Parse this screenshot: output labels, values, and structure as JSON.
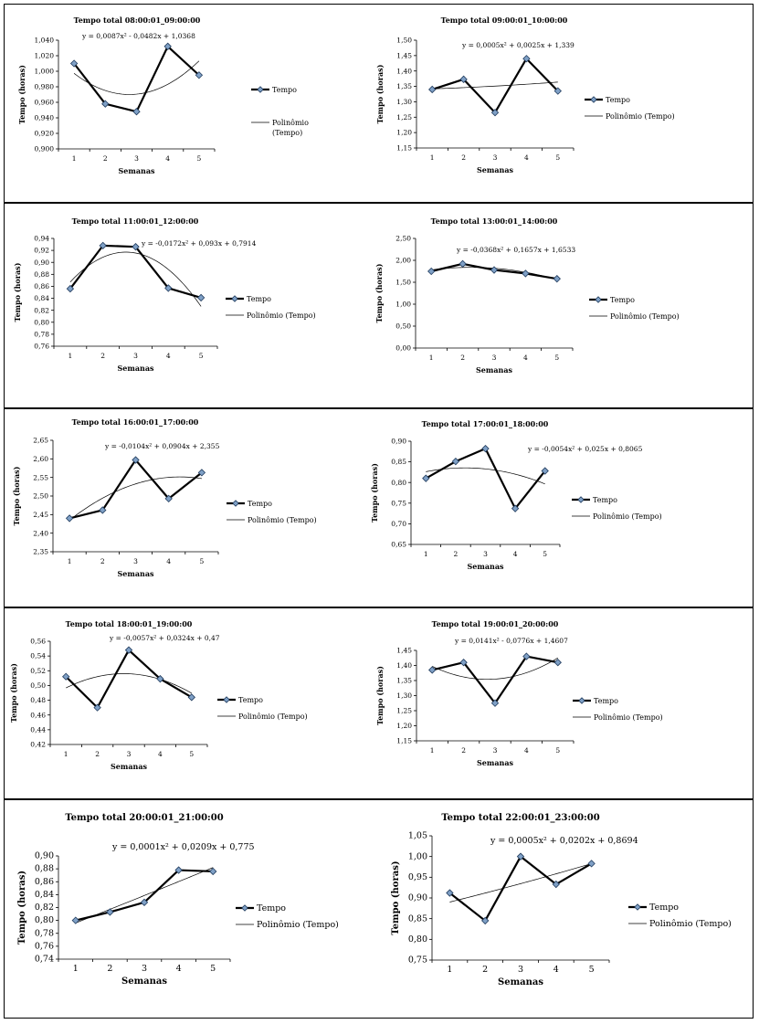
{
  "legend": {
    "series": "Tempo",
    "trend": "Polinômio\n(Tempo)"
  },
  "chart_data": [
    {
      "type": "line",
      "title": "Tempo total 08:00:01_09:00:00",
      "xlabel": "Semanas",
      "ylabel": "Tempo (horas)",
      "x": [
        1,
        2,
        3,
        4,
        5
      ],
      "ylim": [
        0.9,
        1.04
      ],
      "ytick_step": 0.02,
      "ytick_decimals": 3,
      "series": [
        {
          "name": "Tempo",
          "values": [
            1.01,
            0.958,
            0.948,
            1.032,
            0.995
          ]
        },
        {
          "name": "Polinômio (Tempo)",
          "poly": [
            0.0087,
            -0.0482,
            1.0368
          ]
        }
      ],
      "equation": "y = 0,0087x² - 0,0482x + 1,0368",
      "legend_trend_label": "Polinômio\n(Tempo)",
      "legend_position": "right"
    },
    {
      "type": "line",
      "title": "Tempo total 09:00:01_10:00:00",
      "xlabel": "Semanas",
      "ylabel": "Tempo (horas)",
      "x": [
        1,
        2,
        3,
        4,
        5
      ],
      "ylim": [
        1.15,
        1.5
      ],
      "ytick_step": 0.05,
      "ytick_decimals": 2,
      "series": [
        {
          "name": "Tempo",
          "values": [
            1.34,
            1.373,
            1.265,
            1.44,
            1.335
          ]
        },
        {
          "name": "Polinômio (Tempo)",
          "poly": [
            0.0005,
            0.0025,
            1.339
          ]
        }
      ],
      "equation": "y = 0,0005x² + 0,0025x + 1,339",
      "legend_trend_label": "Polinômio (Tempo)",
      "legend_position": "right"
    },
    {
      "type": "line",
      "title": "Tempo total 11:00:01_12:00:00",
      "xlabel": "Semanas",
      "ylabel": "Tempo (horas)",
      "x": [
        1,
        2,
        3,
        4,
        5
      ],
      "ylim": [
        0.76,
        0.94
      ],
      "ytick_step": 0.02,
      "ytick_decimals": 2,
      "series": [
        {
          "name": "Tempo",
          "values": [
            0.856,
            0.928,
            0.926,
            0.857,
            0.841
          ]
        },
        {
          "name": "Polinômio (Tempo)",
          "poly": [
            -0.0172,
            0.093,
            0.7914
          ]
        }
      ],
      "equation": "y = -0,0172x² + 0,093x + 0,7914",
      "legend_trend_label": "Polinômio (Tempo)",
      "legend_position": "right"
    },
    {
      "type": "line",
      "title": "Tempo total 13:00:01_14:00:00",
      "xlabel": "Semanas",
      "ylabel": "Tempo (horas)",
      "x": [
        1,
        2,
        3,
        4,
        5
      ],
      "ylim": [
        0,
        2.5
      ],
      "ytick_step": 0.5,
      "ytick_decimals": 2,
      "series": [
        {
          "name": "Tempo",
          "values": [
            1.75,
            1.92,
            1.78,
            1.7,
            1.58
          ]
        },
        {
          "name": "Polinômio (Tempo)",
          "poly": [
            -0.0368,
            0.1657,
            1.6533
          ]
        }
      ],
      "equation": "y = -0,0368x² + 0,1657x + 1,6533",
      "legend_trend_label": "Polinômio (Tempo)",
      "legend_position": "right"
    },
    {
      "type": "line",
      "title": "Tempo total 16:00:01_17:00:00",
      "xlabel": "Semanas",
      "ylabel": "Tempo (horas)",
      "x": [
        1,
        2,
        3,
        4,
        5
      ],
      "ylim": [
        2.35,
        2.65
      ],
      "ytick_step": 0.05,
      "ytick_decimals": 2,
      "series": [
        {
          "name": "Tempo",
          "values": [
            2.44,
            2.462,
            2.597,
            2.493,
            2.563
          ]
        },
        {
          "name": "Polinômio (Tempo)",
          "poly": [
            -0.0104,
            0.0904,
            2.355
          ]
        }
      ],
      "equation": "y = -0,0104x² + 0,0904x + 2,355",
      "legend_trend_label": "Polinômio (Tempo)",
      "legend_position": "right"
    },
    {
      "type": "line",
      "title": "Tempo total 17:00:01_18:00:00",
      "xlabel": "Semanas",
      "ylabel": "Tempo (horas)",
      "x": [
        1,
        2,
        3,
        4,
        5
      ],
      "ylim": [
        0.65,
        0.9
      ],
      "ytick_step": 0.05,
      "ytick_decimals": 2,
      "series": [
        {
          "name": "Tempo",
          "values": [
            0.81,
            0.851,
            0.882,
            0.737,
            0.828
          ]
        },
        {
          "name": "Polinômio (Tempo)",
          "poly": [
            -0.0054,
            0.025,
            0.8065
          ]
        }
      ],
      "equation": "y = -0,0054x² + 0,025x + 0,8065",
      "legend_trend_label": "Polinômio (Tempo)",
      "legend_position": "right"
    },
    {
      "type": "line",
      "title": "Tempo total 18:00:01_19:00:00",
      "xlabel": "Semanas",
      "ylabel": "Tempo (horas)",
      "x": [
        1,
        2,
        3,
        4,
        5
      ],
      "ylim": [
        0.42,
        0.56
      ],
      "ytick_step": 0.02,
      "ytick_decimals": 2,
      "series": [
        {
          "name": "Tempo",
          "values": [
            0.512,
            0.47,
            0.548,
            0.509,
            0.484
          ]
        },
        {
          "name": "Polinômio (Tempo)",
          "poly": [
            -0.0057,
            0.0324,
            0.47
          ]
        }
      ],
      "equation": "y = -0,0057x² + 0,0324x + 0,47",
      "legend_trend_label": "Polinômio (Tempo)",
      "legend_position": "right"
    },
    {
      "type": "line",
      "title": "Tempo total 19:00:01_20:00:00",
      "xlabel": "Semanas",
      "ylabel": "Tempo (horas)",
      "x": [
        1,
        2,
        3,
        4,
        5
      ],
      "ylim": [
        1.15,
        1.45
      ],
      "ytick_step": 0.05,
      "ytick_decimals": 2,
      "series": [
        {
          "name": "Tempo",
          "values": [
            1.385,
            1.41,
            1.275,
            1.43,
            1.41
          ]
        },
        {
          "name": "Polinômio (Tempo)",
          "poly": [
            0.0141,
            -0.0776,
            1.4607
          ]
        }
      ],
      "equation": "y = 0,0141x² - 0,0776x + 1,4607",
      "legend_trend_label": "Polinômio (Tempo)",
      "legend_position": "right"
    },
    {
      "type": "line",
      "title": "Tempo total 20:00:01_21:00:00",
      "xlabel": "Semanas",
      "ylabel": "Tempo (horas)",
      "x": [
        1,
        2,
        3,
        4,
        5
      ],
      "ylim": [
        0.74,
        0.9
      ],
      "ytick_step": 0.02,
      "ytick_decimals": 2,
      "series": [
        {
          "name": "Tempo",
          "values": [
            0.8,
            0.813,
            0.828,
            0.878,
            0.876
          ]
        },
        {
          "name": "Polinômio (Tempo)",
          "poly": [
            0.0001,
            0.0209,
            0.775
          ]
        }
      ],
      "equation": "y = 0,0001x² + 0,0209x + 0,775",
      "legend_trend_label": "Polinômio (Tempo)",
      "legend_position": "right"
    },
    {
      "type": "line",
      "title": "Tempo total 22:00:01_23:00:00",
      "xlabel": "Semanas",
      "ylabel": "Tempo (horas)",
      "x": [
        1,
        2,
        3,
        4,
        5
      ],
      "ylim": [
        0.75,
        1.05
      ],
      "ytick_step": 0.05,
      "ytick_decimals": 2,
      "series": [
        {
          "name": "Tempo",
          "values": [
            0.912,
            0.845,
            1.0,
            0.933,
            0.983
          ]
        },
        {
          "name": "Polinômio (Tempo)",
          "poly": [
            0.0005,
            0.0202,
            0.8694
          ]
        }
      ],
      "equation": "y = 0,0005x² + 0,0202x + 0,8694",
      "legend_trend_label": "Polinômio (Tempo)",
      "legend_position": "right"
    }
  ]
}
